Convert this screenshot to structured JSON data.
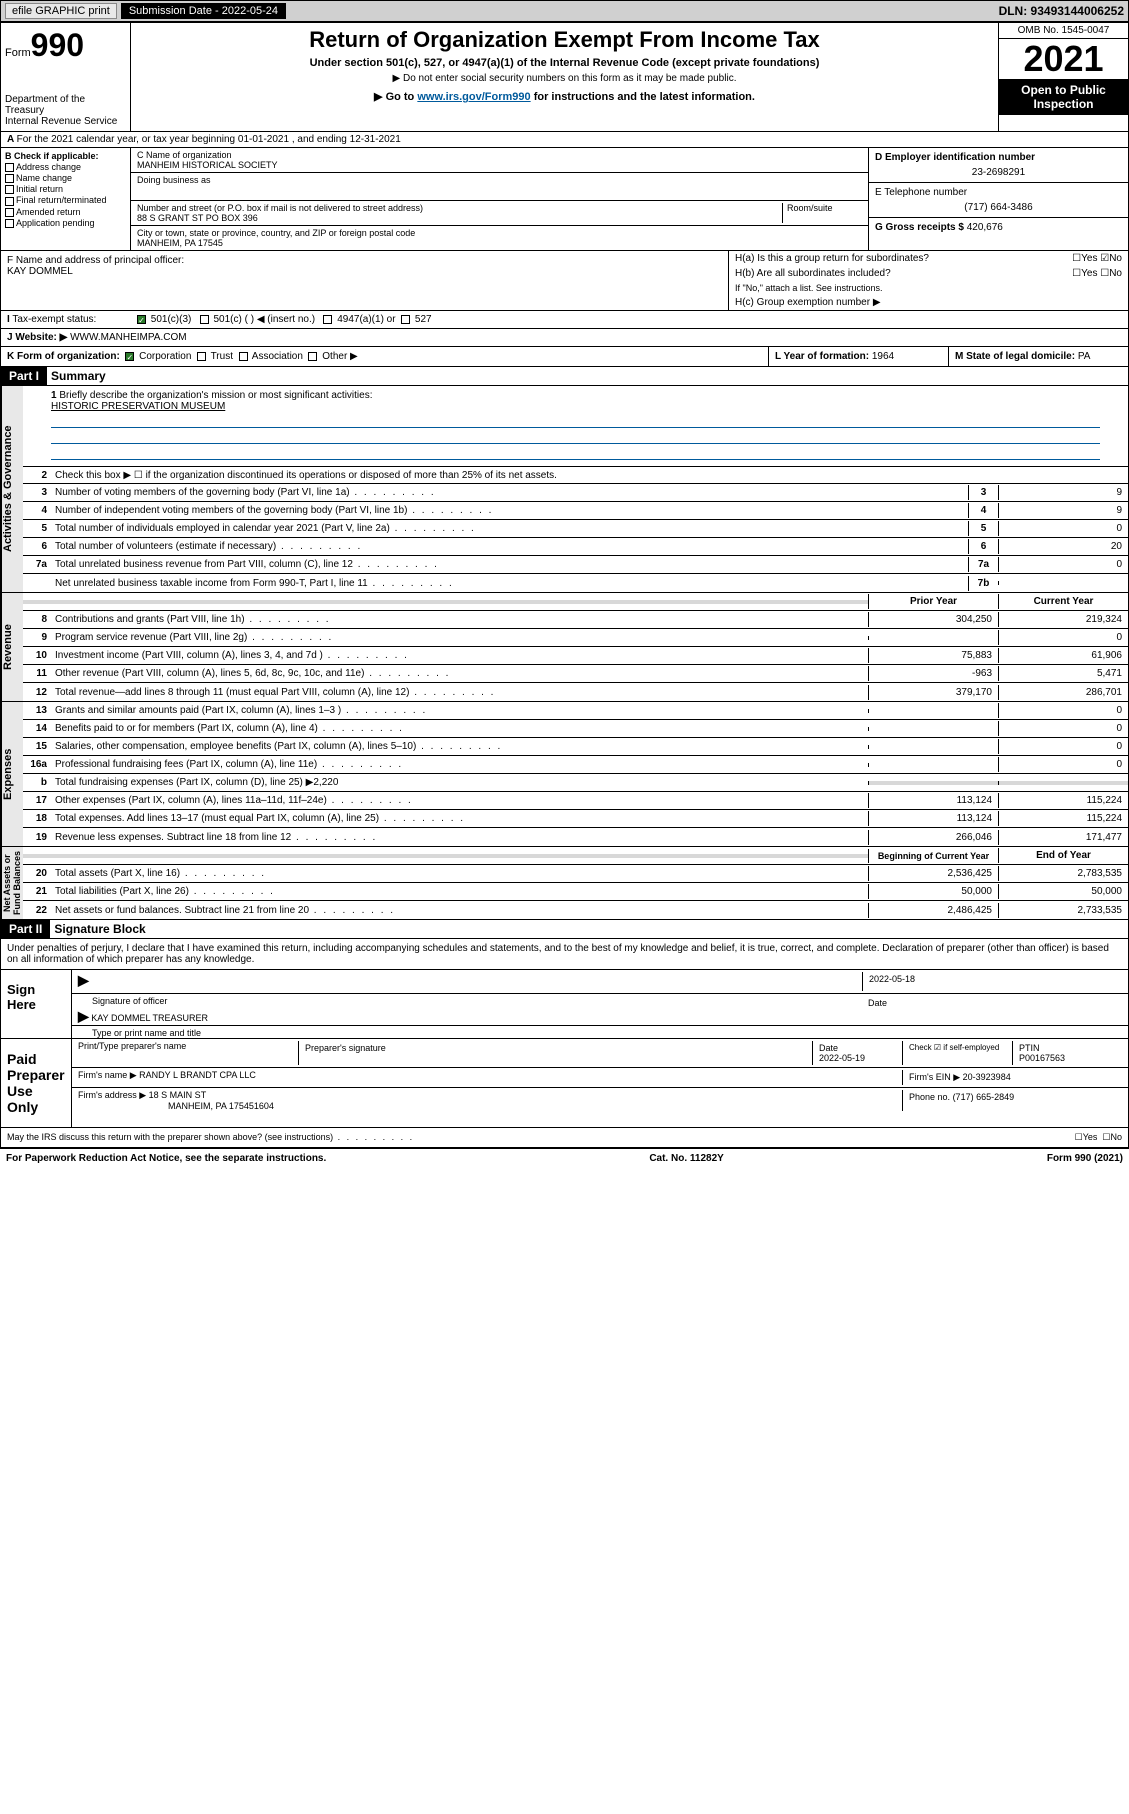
{
  "top": {
    "efile": "efile GRAPHIC print",
    "sub_label": "Submission Date - 2022-05-24",
    "dln": "DLN: 93493144006252"
  },
  "header": {
    "form_prefix": "Form",
    "form_num": "990",
    "dept": "Department of the Treasury\nInternal Revenue Service",
    "title": "Return of Organization Exempt From Income Tax",
    "subtitle": "Under section 501(c), 527, or 4947(a)(1) of the Internal Revenue Code (except private foundations)",
    "note1": "▶ Do not enter social security numbers on this form as it may be made public.",
    "note2_pre": "▶ Go to ",
    "note2_link": "www.irs.gov/Form990",
    "note2_post": " for instructions and the latest information.",
    "omb": "OMB No. 1545-0047",
    "year": "2021",
    "open": "Open to Public Inspection"
  },
  "rowA": "For the 2021 calendar year, or tax year beginning 01-01-2021   , and ending 12-31-2021",
  "B": {
    "label": "B Check if applicable:",
    "items": [
      "Address change",
      "Name change",
      "Initial return",
      "Final return/terminated",
      "Amended return",
      "Application pending"
    ]
  },
  "C": {
    "name_label": "C Name of organization",
    "name": "MANHEIM HISTORICAL SOCIETY",
    "dba_label": "Doing business as",
    "street_label": "Number and street (or P.O. box if mail is not delivered to street address)",
    "room_label": "Room/suite",
    "street": "88 S GRANT ST PO BOX 396",
    "city_label": "City or town, state or province, country, and ZIP or foreign postal code",
    "city": "MANHEIM, PA  17545"
  },
  "D": {
    "label": "D Employer identification number",
    "val": "23-2698291"
  },
  "E": {
    "label": "E Telephone number",
    "val": "(717) 664-3486"
  },
  "G": {
    "label": "G Gross receipts $",
    "val": "420,676"
  },
  "F": {
    "label": "F  Name and address of principal officer:",
    "name": "KAY DOMMEL"
  },
  "H": {
    "a": "H(a)  Is this a group return for subordinates?",
    "b": "H(b)  Are all subordinates included?",
    "b_note": "If \"No,\" attach a list. See instructions.",
    "c": "H(c)  Group exemption number ▶",
    "yes": "Yes",
    "no": "No"
  },
  "I": {
    "label": "Tax-exempt status:",
    "opts": [
      "501(c)(3)",
      "501(c) (  ) ◀ (insert no.)",
      "4947(a)(1) or",
      "527"
    ]
  },
  "J": {
    "label": "Website: ▶",
    "val": "WWW.MANHEIMPA.COM"
  },
  "K": {
    "label": "K Form of organization:",
    "opts": [
      "Corporation",
      "Trust",
      "Association",
      "Other ▶"
    ]
  },
  "L": {
    "label": "L Year of formation:",
    "val": "1964"
  },
  "M": {
    "label": "M State of legal domicile:",
    "val": "PA"
  },
  "part1": {
    "hdr": "Part I",
    "title": "Summary"
  },
  "summary": {
    "l1": "Briefly describe the organization's mission or most significant activities:",
    "l1v": "HISTORIC PRESERVATION MUSEUM",
    "l2": "Check this box ▶ ☐  if the organization discontinued its operations or disposed of more than 25% of its net assets.",
    "lines_gov": [
      {
        "n": "3",
        "d": "Number of voting members of the governing body (Part VI, line 1a)",
        "box": "3",
        "v": "9"
      },
      {
        "n": "4",
        "d": "Number of independent voting members of the governing body (Part VI, line 1b)",
        "box": "4",
        "v": "9"
      },
      {
        "n": "5",
        "d": "Total number of individuals employed in calendar year 2021 (Part V, line 2a)",
        "box": "5",
        "v": "0"
      },
      {
        "n": "6",
        "d": "Total number of volunteers (estimate if necessary)",
        "box": "6",
        "v": "20"
      },
      {
        "n": "7a",
        "d": "Total unrelated business revenue from Part VIII, column (C), line 12",
        "box": "7a",
        "v": "0"
      },
      {
        "n": "",
        "d": "Net unrelated business taxable income from Form 990-T, Part I, line 11",
        "box": "7b",
        "v": ""
      }
    ],
    "col_prior": "Prior Year",
    "col_curr": "Current Year",
    "rev": [
      {
        "n": "8",
        "d": "Contributions and grants (Part VIII, line 1h)",
        "p": "304,250",
        "c": "219,324"
      },
      {
        "n": "9",
        "d": "Program service revenue (Part VIII, line 2g)",
        "p": "",
        "c": "0"
      },
      {
        "n": "10",
        "d": "Investment income (Part VIII, column (A), lines 3, 4, and 7d )",
        "p": "75,883",
        "c": "61,906"
      },
      {
        "n": "11",
        "d": "Other revenue (Part VIII, column (A), lines 5, 6d, 8c, 9c, 10c, and 11e)",
        "p": "-963",
        "c": "5,471"
      },
      {
        "n": "12",
        "d": "Total revenue—add lines 8 through 11 (must equal Part VIII, column (A), line 12)",
        "p": "379,170",
        "c": "286,701"
      }
    ],
    "exp": [
      {
        "n": "13",
        "d": "Grants and similar amounts paid (Part IX, column (A), lines 1–3 )",
        "p": "",
        "c": "0"
      },
      {
        "n": "14",
        "d": "Benefits paid to or for members (Part IX, column (A), line 4)",
        "p": "",
        "c": "0"
      },
      {
        "n": "15",
        "d": "Salaries, other compensation, employee benefits (Part IX, column (A), lines 5–10)",
        "p": "",
        "c": "0"
      },
      {
        "n": "16a",
        "d": "Professional fundraising fees (Part IX, column (A), line 11e)",
        "p": "",
        "c": "0"
      },
      {
        "n": "b",
        "d": "Total fundraising expenses (Part IX, column (D), line 25) ▶2,220",
        "p": "SHADE",
        "c": "SHADE"
      },
      {
        "n": "17",
        "d": "Other expenses (Part IX, column (A), lines 11a–11d, 11f–24e)",
        "p": "113,124",
        "c": "115,224"
      },
      {
        "n": "18",
        "d": "Total expenses. Add lines 13–17 (must equal Part IX, column (A), line 25)",
        "p": "113,124",
        "c": "115,224"
      },
      {
        "n": "19",
        "d": "Revenue less expenses. Subtract line 18 from line 12",
        "p": "266,046",
        "c": "171,477"
      }
    ],
    "col_boy": "Beginning of Current Year",
    "col_eoy": "End of Year",
    "net": [
      {
        "n": "20",
        "d": "Total assets (Part X, line 16)",
        "p": "2,536,425",
        "c": "2,783,535"
      },
      {
        "n": "21",
        "d": "Total liabilities (Part X, line 26)",
        "p": "50,000",
        "c": "50,000"
      },
      {
        "n": "22",
        "d": "Net assets or fund balances. Subtract line 21 from line 20",
        "p": "2,486,425",
        "c": "2,733,535"
      }
    ]
  },
  "sides": {
    "gov": "Activities & Governance",
    "rev": "Revenue",
    "exp": "Expenses",
    "net": "Net Assets or\nFund Balances"
  },
  "part2": {
    "hdr": "Part II",
    "title": "Signature Block"
  },
  "sig": {
    "decl": "Under penalties of perjury, I declare that I have examined this return, including accompanying schedules and statements, and to the best of my knowledge and belief, it is true, correct, and complete. Declaration of preparer (other than officer) is based on all information of which preparer has any knowledge.",
    "sign_here": "Sign Here",
    "sig_officer": "Signature of officer",
    "date": "Date",
    "sig_date": "2022-05-18",
    "name_title": "KAY DOMMEL  TREASURER",
    "type_name": "Type or print name and title",
    "paid": "Paid Preparer Use Only",
    "prep_name_label": "Print/Type preparer's name",
    "prep_sig_label": "Preparer's signature",
    "prep_date_label": "Date",
    "prep_date": "2022-05-19",
    "self_emp": "Check ☑ if self-employed",
    "ptin_label": "PTIN",
    "ptin": "P00167563",
    "firm_name_label": "Firm's name    ▶",
    "firm_name": "RANDY L BRANDT CPA LLC",
    "firm_ein_label": "Firm's EIN ▶",
    "firm_ein": "20-3923984",
    "firm_addr_label": "Firm's address ▶",
    "firm_addr1": "18 S MAIN ST",
    "firm_addr2": "MANHEIM, PA  175451604",
    "phone_label": "Phone no.",
    "phone": "(717) 665-2849",
    "discuss": "May the IRS discuss this return with the preparer shown above? (see instructions)"
  },
  "footer": {
    "pra": "For Paperwork Reduction Act Notice, see the separate instructions.",
    "cat": "Cat. No. 11282Y",
    "form": "Form 990 (2021)"
  }
}
